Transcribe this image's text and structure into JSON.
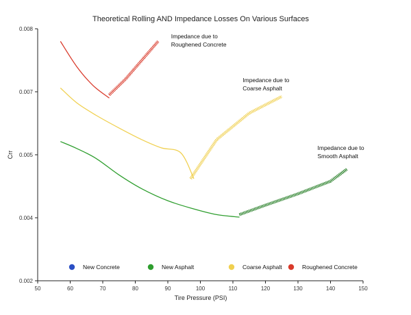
{
  "chart_data": {
    "type": "line",
    "title": "Theoretical Rolling AND Impedance Losses On Various Surfaces",
    "xlabel": "Tire Pressure (PSI)",
    "ylabel": "Crr",
    "xlim": [
      50,
      150
    ],
    "ylim": [
      0.002,
      0.008
    ],
    "x_ticks": [
      "50",
      "60",
      "70",
      "80",
      "90",
      "100",
      "110",
      "120",
      "130",
      "140",
      "150"
    ],
    "y_ticks": [
      {
        "value": 0.002,
        "label": "0.002"
      },
      {
        "value": 0.004,
        "label": "0.004"
      },
      {
        "value": 0.005,
        "label": "0.005"
      },
      {
        "value": 0.007,
        "label": "0.007"
      },
      {
        "value": 0.008,
        "label": "0.008"
      }
    ],
    "y_scale_note": "printed ticks 0.002,0.004,0.005,0.007,0.008 are evenly spaced",
    "grid": false,
    "legend_position": "bottom",
    "colors": {
      "new_concrete": "#2b4fc4",
      "new_asphalt": "#2e9e2e",
      "coarse_asphalt": "#f0d050",
      "roughened_concrete": "#d93a2b",
      "impedance_green": "#1f7a1f"
    },
    "legend": [
      {
        "name": "New Concrete",
        "color": "#2b4fc4"
      },
      {
        "name": "New Asphalt",
        "color": "#2e9e2e"
      },
      {
        "name": "Coarse Asphalt",
        "color": "#f0d050"
      },
      {
        "name": "Roughened Concrete",
        "color": "#d93a2b"
      }
    ],
    "series": [
      {
        "name": "New Asphalt",
        "color": "#2e9e2e",
        "curve": [
          [
            57,
            0.00542
          ],
          [
            62,
            0.0052
          ],
          [
            68,
            0.00494
          ],
          [
            75,
            0.00468
          ],
          [
            82,
            0.00446
          ],
          [
            90,
            0.00427
          ],
          [
            98,
            0.00414
          ],
          [
            105,
            0.00405
          ],
          [
            112,
            0.00401
          ]
        ],
        "impedance": [
          [
            112,
            0.00405
          ],
          [
            120,
            0.0042
          ],
          [
            130,
            0.00438
          ],
          [
            140,
            0.00458
          ],
          [
            145,
            0.00477
          ]
        ]
      },
      {
        "name": "Coarse Asphalt",
        "color": "#f0d050",
        "curve": [
          [
            57,
            0.00706
          ],
          [
            62,
            0.00665
          ],
          [
            68,
            0.00625
          ],
          [
            75,
            0.00585
          ],
          [
            82,
            0.00548
          ],
          [
            88,
            0.00522
          ],
          [
            94,
            0.00506
          ],
          [
            98,
            0.00462
          ]
        ],
        "impedance": [
          [
            97,
            0.00462
          ],
          [
            105,
            0.00548
          ],
          [
            115,
            0.00632
          ],
          [
            125,
            0.00685
          ]
        ]
      },
      {
        "name": "Roughened Concrete",
        "color": "#d93a2b",
        "curve": [
          [
            57,
            0.0078
          ],
          [
            62,
            0.0074
          ],
          [
            67,
            0.0071
          ],
          [
            72,
            0.0068
          ]
        ],
        "impedance": [
          [
            72,
            0.0069
          ],
          [
            77,
            0.0072
          ],
          [
            82,
            0.0075
          ],
          [
            87,
            0.0078
          ]
        ]
      }
    ],
    "annotations": [
      {
        "line1": "Impedance due to",
        "line2": "Roughened Concrete",
        "x": 91,
        "y": 0.00785
      },
      {
        "line1": "Impedance due to",
        "line2": "Coarse Asphalt",
        "x": 113,
        "y": 0.00715
      },
      {
        "line1": "Impedance due to",
        "line2": "Smooth Asphalt",
        "x": 136,
        "y": 0.00515
      }
    ]
  }
}
